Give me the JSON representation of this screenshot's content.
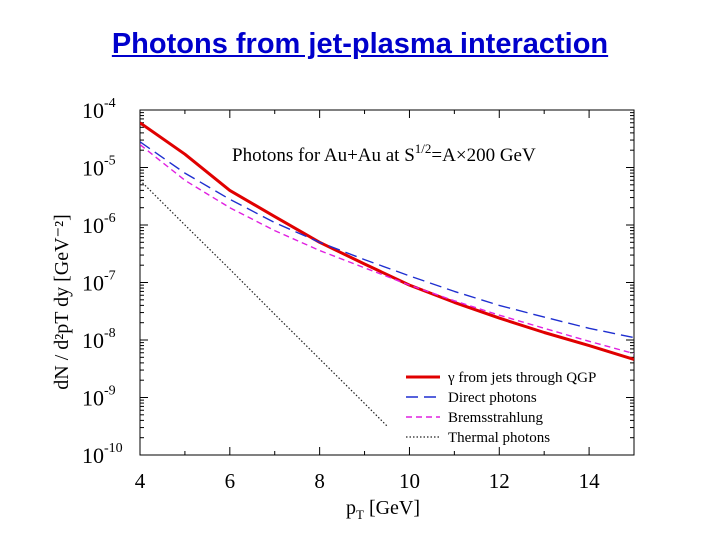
{
  "slide": {
    "title": "Photons from jet-plasma interaction"
  },
  "chart_data": {
    "type": "line",
    "title": "Photons for Au+Au at S^1/2 = A×200 GeV",
    "title_parts": {
      "lead": "Photons for Au+Au at S",
      "sup": "1/2",
      "tail": "=A×200 GeV"
    },
    "xlabel": "pT [GeV]",
    "xlabel_parts": {
      "p": "p",
      "sub": "T",
      "rest": " [GeV]"
    },
    "ylabel": "dN / d²pT dy [GeV⁻²]",
    "xlim": [
      4,
      15
    ],
    "ylim": [
      1e-10,
      0.0001
    ],
    "log_y": true,
    "x_ticks": [
      "4",
      "6",
      "8",
      "10",
      "12",
      "14"
    ],
    "y_ticks": [
      {
        "base": "10",
        "exp": "-4"
      },
      {
        "base": "10",
        "exp": "-5"
      },
      {
        "base": "10",
        "exp": "-6"
      },
      {
        "base": "10",
        "exp": "-7"
      },
      {
        "base": "10",
        "exp": "-8"
      },
      {
        "base": "10",
        "exp": "-9"
      },
      {
        "base": "10",
        "exp": "-10"
      }
    ],
    "series": [
      {
        "name": "γ from jets through QGP",
        "color": "#e00000",
        "style": "solid",
        "width": 3,
        "x": [
          4,
          5,
          6,
          7,
          8,
          9,
          10,
          11,
          12,
          13,
          14,
          15
        ],
        "values": [
          6e-05,
          1.7e-05,
          4e-06,
          1.4e-06,
          5e-07,
          2.1e-07,
          9e-08,
          4.5e-08,
          2.4e-08,
          1.35e-08,
          8e-09,
          4.6e-09
        ]
      },
      {
        "name": "Direct photons",
        "color": "#1f2fd0",
        "style": "dashed",
        "width": 1.4,
        "x": [
          4,
          5,
          6,
          7,
          8,
          9,
          10,
          11,
          12,
          13,
          14,
          15
        ],
        "values": [
          2.8e-05,
          8e-06,
          2.8e-06,
          1.1e-06,
          5e-07,
          2.5e-07,
          1.3e-07,
          7e-08,
          4e-08,
          2.5e-08,
          1.6e-08,
          1.1e-08
        ]
      },
      {
        "name": "Bremsstrahlung",
        "color": "#e020e0",
        "style": "dashed-short",
        "width": 1.4,
        "x": [
          4,
          5,
          6,
          7,
          8,
          9,
          10,
          11,
          12,
          13,
          14,
          15
        ],
        "values": [
          2.5e-05,
          6e-06,
          2e-06,
          8e-07,
          3.6e-07,
          1.8e-07,
          9e-08,
          4.8e-08,
          2.7e-08,
          1.6e-08,
          9.5e-09,
          5.8e-09
        ]
      },
      {
        "name": "Thermal photons",
        "color": "#222222",
        "style": "dotted",
        "width": 1.2,
        "x": [
          4,
          5,
          6,
          7,
          8,
          9,
          9.5
        ],
        "values": [
          6e-06,
          1e-06,
          1.7e-07,
          2.8e-08,
          4.7e-09,
          7.9e-10,
          3.2e-10
        ]
      }
    ],
    "legend": {
      "placement": "bottom-right"
    }
  }
}
